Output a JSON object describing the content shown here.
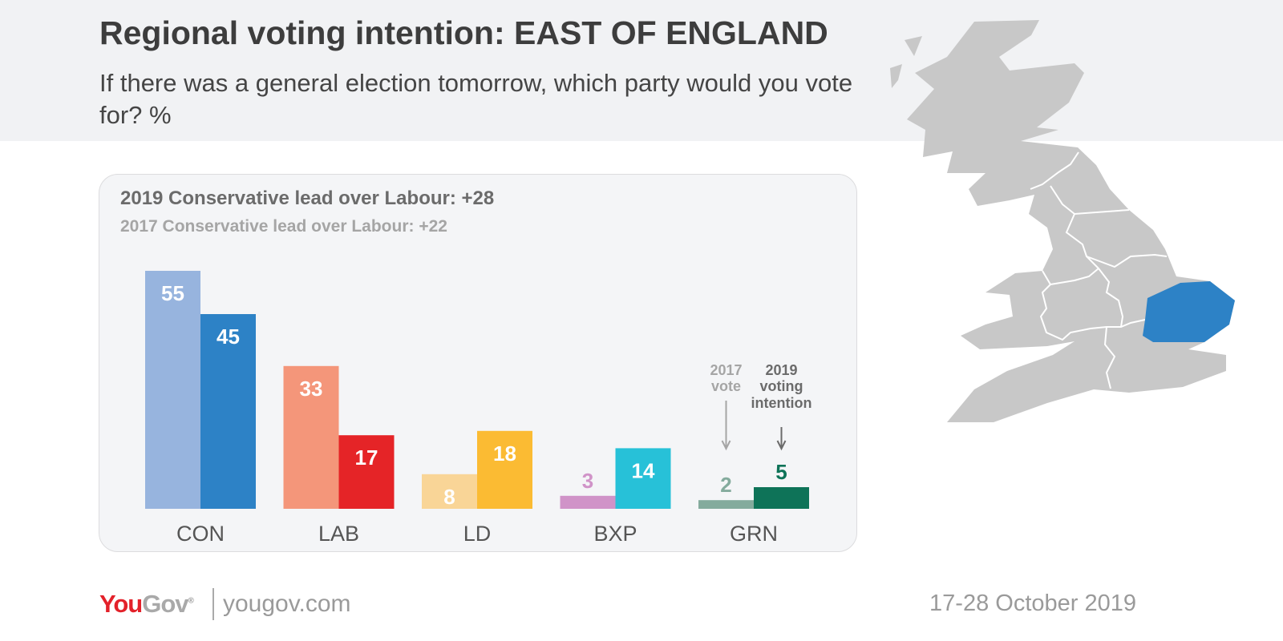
{
  "header": {
    "title": "Regional voting intention: EAST OF ENGLAND",
    "subtitle": "If there was a general election tomorrow, which party would you vote for? %"
  },
  "panel": {
    "lead_2019": "2019 Conservative lead over Labour: +28",
    "lead_2017": "2017 Conservative lead over Labour: +22"
  },
  "chart_data": {
    "type": "bar",
    "categories": [
      "CON",
      "LAB",
      "LD",
      "BXP",
      "GRN"
    ],
    "series": [
      {
        "name": "2017 vote",
        "values": [
          55,
          33,
          8,
          3,
          2
        ],
        "colors": [
          "#97b4de",
          "#f4967a",
          "#f9d597",
          "#d093c8",
          "#84ab9d"
        ]
      },
      {
        "name": "2019 voting intention",
        "values": [
          45,
          17,
          18,
          14,
          5
        ],
        "colors": [
          "#2d82c6",
          "#e52427",
          "#fbbb33",
          "#27c1d8",
          "#0e7358"
        ]
      }
    ],
    "annotations": {
      "series1_label_a": "2017",
      "series1_label_b": "vote",
      "series2_label_a": "2019",
      "series2_label_b": "voting",
      "series2_label_c": "intention"
    },
    "ylim": [
      0,
      60
    ],
    "grid": false
  },
  "map": {
    "highlight_region": "East of England",
    "highlight_color": "#2d82c6",
    "base_color": "#c8c8c8"
  },
  "footer": {
    "logo_you": "You",
    "logo_gov": "Gov",
    "logo_reg": "®",
    "url": "yougov.com",
    "date": "17-28 October 2019"
  }
}
